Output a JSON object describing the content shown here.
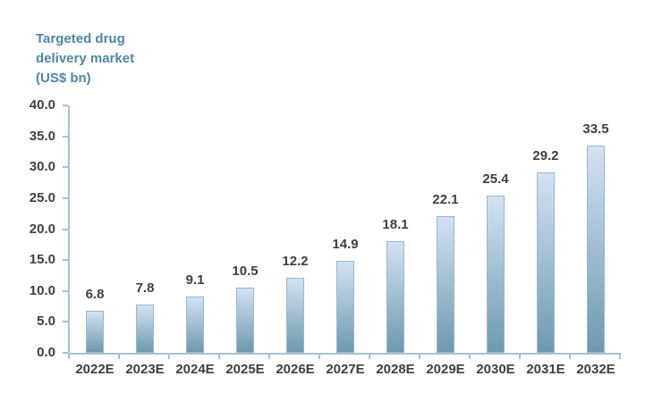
{
  "chart_data": {
    "type": "bar",
    "title": "Targeted drug delivery market (US$ bn)",
    "title_lines": [
      "Targeted drug",
      "delivery market",
      "(US$ bn)"
    ],
    "categories": [
      "2022E",
      "2023E",
      "2024E",
      "2025E",
      "2026E",
      "2027E",
      "2028E",
      "2029E",
      "2030E",
      "2031E",
      "2032E"
    ],
    "values": [
      6.8,
      7.8,
      9.1,
      10.5,
      12.2,
      14.9,
      18.1,
      22.1,
      25.4,
      29.2,
      33.5
    ],
    "value_labels": [
      "6.8",
      "7.8",
      "9.1",
      "10.5",
      "12.2",
      "14.9",
      "18.1",
      "22.1",
      "25.4",
      "29.2",
      "33.5"
    ],
    "xlabel": "",
    "ylabel": "",
    "ylim": [
      0,
      40
    ],
    "ytick_step": 5,
    "ytick_labels": [
      "0.0",
      "5.0",
      "10.0",
      "15.0",
      "20.0",
      "25.0",
      "30.0",
      "35.0",
      "40.0"
    ],
    "grid": false,
    "legend_position": "none",
    "data_labels_shown": true,
    "colors": {
      "title_text": "#4e86a6",
      "bar_gradient_top": "#d3e2f3",
      "bar_gradient_bottom": "#6e99af",
      "bar_border": "#9bb7c9",
      "axis_line": "#a6c2d3",
      "label_text": "#3f3f3f"
    }
  }
}
